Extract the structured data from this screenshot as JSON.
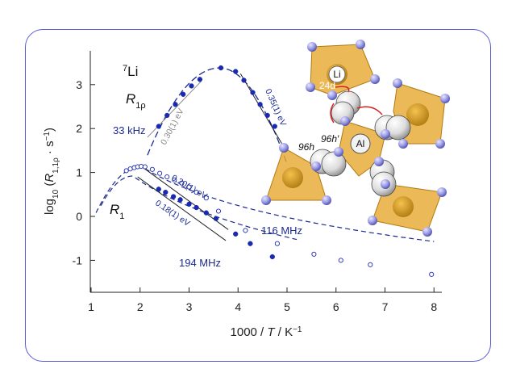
{
  "chart_data": {
    "type": "scatter",
    "nucleus_label": {
      "sup": "7",
      "text": "Li"
    },
    "xlabel": "1000 / T / K-1",
    "ylabel": "log10 (R1,1ρ · s-1)",
    "xlim": [
      1,
      8.1
    ],
    "ylim": [
      -1.7,
      3.6
    ],
    "x_ticks": [
      "1",
      "2",
      "3",
      "4",
      "5",
      "6",
      "7",
      "8"
    ],
    "y_ticks": [
      "-1",
      "0",
      "1",
      "2",
      "3"
    ],
    "legend": "none",
    "grid": false,
    "series": [
      {
        "name": "33 kHz",
        "label": "R1ρ",
        "marker": "filled",
        "activation_energy_low_T": "0.35(1) eV",
        "activation_energy_high_T": "0.30(1) eV",
        "points": [
          [
            2.38,
            2.05
          ],
          [
            2.55,
            2.3
          ],
          [
            2.72,
            2.55
          ],
          [
            2.88,
            2.78
          ],
          [
            3.05,
            2.97
          ],
          [
            3.22,
            3.12
          ],
          [
            3.65,
            3.38
          ],
          [
            3.95,
            3.3
          ],
          [
            4.12,
            3.1
          ],
          [
            4.3,
            2.82
          ],
          [
            4.45,
            2.55
          ],
          [
            4.6,
            2.3
          ],
          [
            4.75,
            2.05
          ]
        ]
      },
      {
        "name": "116 MHz",
        "label": "R1",
        "marker": "open",
        "activation_energy": "0.20(1) eV",
        "points": [
          [
            1.72,
            1.04
          ],
          [
            1.8,
            1.08
          ],
          [
            1.88,
            1.11
          ],
          [
            1.95,
            1.13
          ],
          [
            2.02,
            1.14
          ],
          [
            2.1,
            1.13
          ],
          [
            2.25,
            1.07
          ],
          [
            2.4,
            0.98
          ],
          [
            2.55,
            0.9
          ],
          [
            2.7,
            0.83
          ],
          [
            2.85,
            0.76
          ],
          [
            3.0,
            0.67
          ],
          [
            3.15,
            0.55
          ],
          [
            3.35,
            0.42
          ],
          [
            3.6,
            0.12
          ],
          [
            4.15,
            -0.32
          ],
          [
            4.8,
            -0.62
          ],
          [
            5.55,
            -0.86
          ],
          [
            6.1,
            -1.0
          ],
          [
            6.7,
            -1.1
          ],
          [
            7.95,
            -1.32
          ]
        ]
      },
      {
        "name": "194 MHz",
        "label": "R1",
        "marker": "filled",
        "activation_energy": "0.18(1) eV",
        "points": [
          [
            2.38,
            0.62
          ],
          [
            2.52,
            0.55
          ],
          [
            2.68,
            0.45
          ],
          [
            2.82,
            0.38
          ],
          [
            3.0,
            0.28
          ],
          [
            3.15,
            0.2
          ],
          [
            3.35,
            0.08
          ],
          [
            3.55,
            -0.05
          ],
          [
            3.95,
            -0.4
          ],
          [
            4.25,
            -0.62
          ],
          [
            4.7,
            -0.92
          ]
        ]
      }
    ],
    "structure_labels": [
      "Li",
      "24d",
      "Al",
      "96h",
      "96h′"
    ]
  }
}
